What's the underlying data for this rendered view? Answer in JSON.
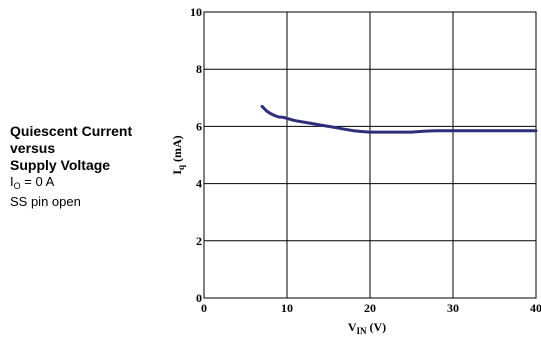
{
  "caption": {
    "line1": "Quiescent Current",
    "line2": "versus",
    "line3": "Supply Voltage",
    "cond1_var": "I",
    "cond1_sub": "O",
    "cond1_rest": " = 0 A",
    "cond2": "SS pin open"
  },
  "chart_data": {
    "type": "line",
    "title": "Quiescent Current versus Supply Voltage",
    "xlabel_main": "V",
    "xlabel_sub": "IN",
    "xlabel_unit": " (V)",
    "ylabel_main": "I",
    "ylabel_sub": "q",
    "ylabel_unit": " (mA)",
    "xlim": [
      0,
      40
    ],
    "ylim": [
      0,
      10
    ],
    "x_ticks": [
      0,
      10,
      20,
      30,
      40
    ],
    "y_ticks": [
      0,
      2,
      4,
      6,
      8,
      10
    ],
    "x_tick_labels": [
      "0",
      "10",
      "20",
      "30",
      "40"
    ],
    "y_tick_labels": [
      "0",
      "2",
      "4",
      "6",
      "8",
      "10"
    ],
    "grid": true,
    "series": [
      {
        "color": "#2b2f7a",
        "x": [
          7,
          7.5,
          8,
          8.5,
          9,
          9.5,
          10,
          11,
          12,
          13,
          14,
          15,
          16,
          17,
          18,
          19,
          20,
          21,
          22,
          23,
          24,
          25,
          26,
          27,
          28,
          30,
          35,
          40
        ],
        "y": [
          6.7,
          6.55,
          6.45,
          6.38,
          6.33,
          6.32,
          6.28,
          6.2,
          6.15,
          6.1,
          6.05,
          6.0,
          5.95,
          5.9,
          5.85,
          5.82,
          5.8,
          5.8,
          5.8,
          5.8,
          5.8,
          5.8,
          5.82,
          5.84,
          5.85,
          5.85,
          5.85,
          5.85
        ]
      }
    ]
  }
}
